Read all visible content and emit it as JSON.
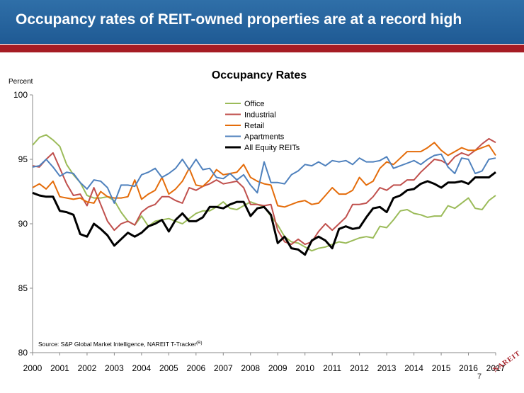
{
  "slide": {
    "title": "Occupancy rates of REIT-owned properties are at a record high",
    "page_number": "7",
    "logo_text": "NAREIT",
    "colors": {
      "banner": "#2a69a3",
      "accent": "#a51c24"
    }
  },
  "chart_data": {
    "type": "line",
    "title": "Occupancy Rates",
    "ylabel": "Percent",
    "xlabel": "",
    "ylim": [
      80,
      100
    ],
    "yticks": [
      "80",
      "85",
      "90",
      "95",
      "100"
    ],
    "xticks": [
      "2000",
      "2001",
      "2002",
      "2003",
      "2004",
      "2005",
      "2006",
      "2007",
      "2008",
      "2009",
      "2010",
      "2011",
      "2012",
      "2013",
      "2014",
      "2015",
      "2016",
      "2017"
    ],
    "x_start": 2000,
    "x_step": 0.25,
    "grid": false,
    "legend_position": "top-center",
    "source": "Source: S&P Global Market Intelligence, NAREIT T-Tracker",
    "source_superscript": "(R)",
    "series": [
      {
        "name": "Office",
        "color": "#9bbb59",
        "width": 2,
        "values": [
          96.1,
          96.7,
          96.9,
          96.5,
          96.0,
          94.6,
          93.8,
          93.2,
          92.2,
          92.0,
          92.0,
          92.1,
          91.8,
          90.9,
          90.2,
          89.9,
          90.6,
          89.8,
          90.2,
          90.3,
          90.4,
          90.2,
          90.0,
          90.4,
          90.8,
          91.0,
          91.0,
          91.3,
          91.7,
          91.2,
          91.1,
          91.4,
          91.7,
          91.5,
          91.3,
          90.6,
          89.9,
          89.0,
          88.6,
          88.5,
          88.2,
          87.9,
          88.1,
          88.2,
          88.4,
          88.6,
          88.5,
          88.7,
          88.9,
          89.0,
          88.9,
          89.8,
          89.7,
          90.3,
          91.0,
          91.1,
          90.8,
          90.7,
          90.5,
          90.6,
          90.6,
          91.4,
          91.2,
          91.6,
          92.0,
          91.2,
          91.1,
          91.8,
          92.2
        ]
      },
      {
        "name": "Industrial",
        "color": "#c0504d",
        "width": 2,
        "values": [
          94.5,
          94.4,
          95.0,
          95.5,
          94.3,
          93.1,
          92.2,
          92.3,
          91.4,
          92.8,
          91.5,
          90.2,
          89.5,
          90.0,
          90.2,
          89.9,
          90.9,
          91.3,
          91.5,
          92.1,
          92.1,
          91.8,
          91.6,
          92.8,
          92.6,
          92.9,
          93.1,
          93.4,
          93.1,
          93.2,
          93.3,
          92.8,
          91.5,
          91.5,
          91.4,
          91.5,
          89.5,
          88.6,
          88.4,
          88.8,
          88.4,
          88.6,
          89.4,
          90.0,
          89.5,
          90.0,
          90.5,
          91.5,
          91.5,
          91.6,
          92.1,
          92.8,
          92.6,
          93.0,
          93.0,
          93.4,
          93.4,
          94.0,
          94.5,
          95.0,
          94.9,
          94.6,
          95.2,
          95.5,
          95.3,
          95.7,
          96.2,
          96.6,
          96.3
        ]
      },
      {
        "name": "Retail",
        "color": "#e46c0a",
        "width": 2,
        "values": [
          92.8,
          93.1,
          92.7,
          93.3,
          92.1,
          92.0,
          91.9,
          92.0,
          91.7,
          91.6,
          92.5,
          92.1,
          92.0,
          92.0,
          92.1,
          93.4,
          91.9,
          92.3,
          92.6,
          93.6,
          92.3,
          92.7,
          93.3,
          94.3,
          93.0,
          92.9,
          93.4,
          94.2,
          93.8,
          93.9,
          94.0,
          94.6,
          93.6,
          93.3,
          93.1,
          93.0,
          91.4,
          91.3,
          91.5,
          91.7,
          91.8,
          91.5,
          91.6,
          92.2,
          92.8,
          92.3,
          92.3,
          92.6,
          93.6,
          93.0,
          93.3,
          94.3,
          94.8,
          94.6,
          95.1,
          95.6,
          95.6,
          95.6,
          95.9,
          96.3,
          95.7,
          95.3,
          95.6,
          95.9,
          95.7,
          95.7,
          95.9,
          96.1,
          95.3
        ]
      },
      {
        "name": "Apartments",
        "color": "#4f81bd",
        "width": 2,
        "values": [
          94.4,
          94.5,
          95.0,
          94.4,
          93.7,
          94.0,
          93.9,
          93.2,
          92.7,
          93.4,
          93.3,
          92.8,
          91.6,
          93.0,
          93.0,
          92.9,
          93.8,
          94.0,
          94.3,
          93.6,
          93.9,
          94.3,
          95.0,
          94.2,
          95.0,
          94.2,
          94.3,
          93.6,
          93.5,
          93.9,
          93.4,
          93.8,
          93.0,
          92.4,
          94.8,
          93.2,
          93.2,
          93.1,
          93.8,
          94.1,
          94.6,
          94.5,
          94.8,
          94.5,
          94.9,
          94.8,
          94.9,
          94.6,
          95.1,
          94.8,
          94.8,
          94.9,
          95.2,
          94.3,
          94.5,
          94.7,
          94.9,
          94.6,
          95.0,
          95.3,
          95.4,
          94.4,
          93.9,
          95.1,
          95.0,
          93.9,
          94.1,
          95.0,
          95.1
        ]
      },
      {
        "name": "All Equity REITs",
        "color": "#000000",
        "width": 3,
        "values": [
          92.4,
          92.2,
          92.1,
          92.1,
          91.0,
          90.9,
          90.7,
          89.2,
          89.0,
          90.0,
          89.6,
          89.1,
          88.3,
          88.8,
          89.3,
          89.0,
          89.3,
          89.8,
          90.0,
          90.3,
          89.4,
          90.3,
          90.8,
          90.2,
          90.2,
          90.5,
          91.3,
          91.3,
          91.2,
          91.5,
          91.7,
          91.7,
          90.6,
          91.2,
          91.3,
          90.7,
          88.5,
          89.0,
          88.1,
          88.0,
          87.6,
          88.7,
          89.0,
          88.7,
          88.1,
          89.6,
          89.8,
          89.6,
          89.7,
          90.5,
          91.2,
          91.3,
          90.9,
          92.0,
          92.2,
          92.6,
          92.7,
          93.1,
          93.3,
          93.1,
          92.8,
          93.2,
          93.2,
          93.3,
          93.1,
          93.6,
          93.6,
          93.6,
          94.0
        ]
      }
    ]
  }
}
